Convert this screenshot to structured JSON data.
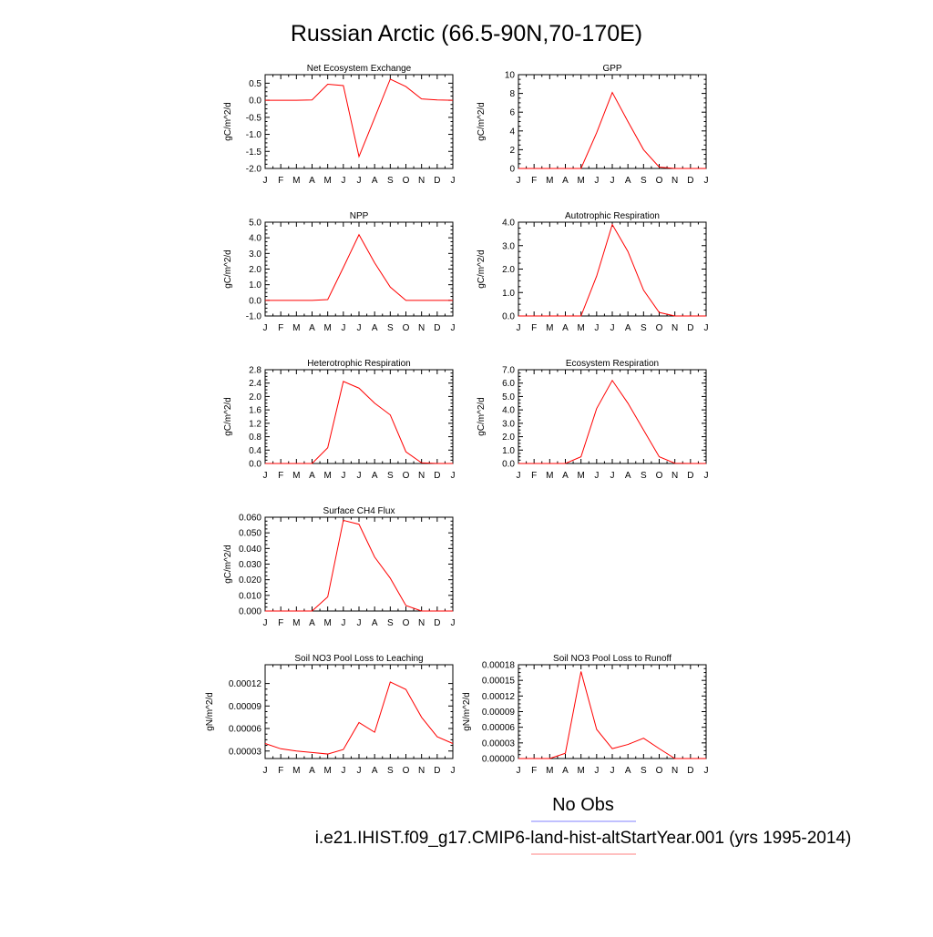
{
  "title": "Russian Arctic (66.5-90N,70-170E)",
  "month_labels": [
    "J",
    "F",
    "M",
    "A",
    "M",
    "J",
    "J",
    "A",
    "S",
    "O",
    "N",
    "D",
    "J"
  ],
  "colors": {
    "model_line": "#ff0000",
    "obs_line": "#3333cc",
    "obs_legend": "#8080ff",
    "model_legend": "#ff8080"
  },
  "legend": {
    "obs_label": "No Obs",
    "model_label": "i.e21.IHIST.f09_g17.CMIP6-land-hist-altStartYear.001 (yrs 1995-2014)"
  },
  "chart_data": [
    {
      "type": "line",
      "title": "Net Ecosystem Exchange",
      "ylabel": "gC/m^2/d",
      "x": [
        "J",
        "F",
        "M",
        "A",
        "M",
        "J",
        "J",
        "A",
        "S",
        "O",
        "N",
        "D",
        "J"
      ],
      "ylim": [
        -2.0,
        0.75
      ],
      "yticks": [
        0.5,
        0.0,
        -0.5,
        -1.0,
        -1.5,
        -2.0
      ],
      "ytick_labels": [
        "0.5",
        "0.0",
        "-0.5",
        "-1.0",
        "-1.5",
        "-2.0"
      ],
      "series": [
        {
          "values": [
            0.0,
            0.0,
            0.0,
            0.01,
            0.47,
            0.43,
            -1.65,
            -0.52,
            0.62,
            0.4,
            0.04,
            0.01,
            0.0
          ]
        }
      ]
    },
    {
      "type": "line",
      "title": "GPP",
      "ylabel": "gC/m^2/d",
      "x": [
        "J",
        "F",
        "M",
        "A",
        "M",
        "J",
        "J",
        "A",
        "S",
        "O",
        "N",
        "D",
        "J"
      ],
      "ylim": [
        0,
        10
      ],
      "yticks": [
        10,
        8,
        6,
        4,
        2,
        0
      ],
      "ytick_labels": [
        "10",
        "8",
        "6",
        "4",
        "2",
        "0"
      ],
      "series": [
        {
          "values": [
            0.0,
            0.0,
            0.0,
            0.0,
            0.0,
            3.8,
            8.1,
            5.0,
            2.0,
            0.15,
            0.0,
            0.0,
            0.0
          ]
        }
      ]
    },
    {
      "type": "line",
      "title": "NPP",
      "ylabel": "gC/m^2/d",
      "x": [
        "J",
        "F",
        "M",
        "A",
        "M",
        "J",
        "J",
        "A",
        "S",
        "O",
        "N",
        "D",
        "J"
      ],
      "ylim": [
        -1.0,
        5.0
      ],
      "yticks": [
        5.0,
        4.0,
        3.0,
        2.0,
        1.0,
        0.0,
        -1.0
      ],
      "ytick_labels": [
        "5.0",
        "4.0",
        "3.0",
        "2.0",
        "1.0",
        "0.0",
        "-1.0"
      ],
      "series": [
        {
          "values": [
            0.0,
            0.0,
            0.0,
            0.0,
            0.05,
            2.1,
            4.2,
            2.4,
            0.85,
            0.0,
            0.0,
            0.0,
            0.0
          ]
        }
      ]
    },
    {
      "type": "line",
      "title": "Autotrophic Respiration",
      "ylabel": "gC/m^2/d",
      "x": [
        "J",
        "F",
        "M",
        "A",
        "M",
        "J",
        "J",
        "A",
        "S",
        "O",
        "N",
        "D",
        "J"
      ],
      "ylim": [
        0.0,
        4.0
      ],
      "yticks": [
        4.0,
        3.0,
        2.0,
        1.0,
        0.0
      ],
      "ytick_labels": [
        "4.0",
        "3.0",
        "2.0",
        "1.0",
        "0.0"
      ],
      "series": [
        {
          "values": [
            0.0,
            0.0,
            0.0,
            0.0,
            0.0,
            1.7,
            3.9,
            2.75,
            1.1,
            0.15,
            0.0,
            0.0,
            0.0
          ]
        }
      ]
    },
    {
      "type": "line",
      "title": "Heterotrophic Respiration",
      "ylabel": "gC/m^2/d",
      "x": [
        "J",
        "F",
        "M",
        "A",
        "M",
        "J",
        "J",
        "A",
        "S",
        "O",
        "N",
        "D",
        "J"
      ],
      "ylim": [
        0.0,
        2.8
      ],
      "yticks": [
        2.8,
        2.4,
        2.0,
        1.6,
        1.2,
        0.8,
        0.4,
        0.0
      ],
      "ytick_labels": [
        "2.8",
        "2.4",
        "2.0",
        "1.6",
        "1.2",
        "0.8",
        "0.4",
        "0.0"
      ],
      "series": [
        {
          "values": [
            0.0,
            0.0,
            0.0,
            0.0,
            0.47,
            2.45,
            2.25,
            1.8,
            1.45,
            0.35,
            0.02,
            0.0,
            0.0
          ]
        }
      ]
    },
    {
      "type": "line",
      "title": "Ecosystem Respiration",
      "ylabel": "gC/m^2/d",
      "x": [
        "J",
        "F",
        "M",
        "A",
        "M",
        "J",
        "J",
        "A",
        "S",
        "O",
        "N",
        "D",
        "J"
      ],
      "ylim": [
        0.0,
        7.0
      ],
      "yticks": [
        7.0,
        6.0,
        5.0,
        4.0,
        3.0,
        2.0,
        1.0,
        0.0
      ],
      "ytick_labels": [
        "7.0",
        "6.0",
        "5.0",
        "4.0",
        "3.0",
        "2.0",
        "1.0",
        "0.0"
      ],
      "series": [
        {
          "values": [
            0.0,
            0.0,
            0.0,
            0.0,
            0.5,
            4.1,
            6.2,
            4.5,
            2.5,
            0.5,
            0.02,
            0.0,
            0.0
          ]
        }
      ]
    },
    {
      "type": "line",
      "title": "Surface CH4 Flux",
      "ylabel": "gC/m^2/d",
      "x": [
        "J",
        "F",
        "M",
        "A",
        "M",
        "J",
        "J",
        "A",
        "S",
        "O",
        "N",
        "D",
        "J"
      ],
      "ylim": [
        0.0,
        0.06
      ],
      "yticks": [
        0.06,
        0.05,
        0.04,
        0.03,
        0.02,
        0.01,
        0.0
      ],
      "ytick_labels": [
        "0.060",
        "0.050",
        "0.040",
        "0.030",
        "0.020",
        "0.010",
        "0.000"
      ],
      "series": [
        {
          "values": [
            0.0,
            0.0,
            0.0,
            0.0,
            0.009,
            0.058,
            0.0555,
            0.0345,
            0.021,
            0.0035,
            0.0,
            0.0,
            0.0
          ]
        }
      ]
    },
    {
      "type": "line",
      "title": "Soil NO3 Pool Loss to Leaching",
      "ylabel": "gN/m^2/d",
      "x": [
        "J",
        "F",
        "M",
        "A",
        "M",
        "J",
        "J",
        "A",
        "S",
        "O",
        "N",
        "D",
        "J"
      ],
      "ylim": [
        2e-05,
        0.000145
      ],
      "yticks": [
        0.00012,
        9e-05,
        6e-05,
        3e-05
      ],
      "ytick_labels": [
        "0.00012",
        "0.00009",
        "0.00006",
        "0.00003"
      ],
      "series": [
        {
          "values": [
            4e-05,
            3.3e-05,
            3e-05,
            2.8e-05,
            2.6e-05,
            3.2e-05,
            6.8e-05,
            5.5e-05,
            0.000122,
            0.000112,
            7.5e-05,
            4.9e-05,
            4e-05
          ]
        }
      ]
    },
    {
      "type": "line",
      "title": "Soil NO3 Pool Loss to Runoff",
      "ylabel": "gN/m^2/d",
      "x": [
        "J",
        "F",
        "M",
        "A",
        "M",
        "J",
        "J",
        "A",
        "S",
        "O",
        "N",
        "D",
        "J"
      ],
      "ylim": [
        0.0,
        0.00018
      ],
      "yticks": [
        0.00018,
        0.00015,
        0.00012,
        9e-05,
        6e-05,
        3e-05,
        0.0
      ],
      "ytick_labels": [
        "0.00018",
        "0.00015",
        "0.00012",
        "0.00009",
        "0.00006",
        "0.00003",
        "0.00000"
      ],
      "series": [
        {
          "values": [
            0.0,
            0.0,
            0.0,
            1e-05,
            0.000167,
            5.6e-05,
            1.9e-05,
            2.7e-05,
            3.9e-05,
            1.9e-05,
            0.0,
            0.0,
            0.0
          ]
        }
      ]
    }
  ]
}
